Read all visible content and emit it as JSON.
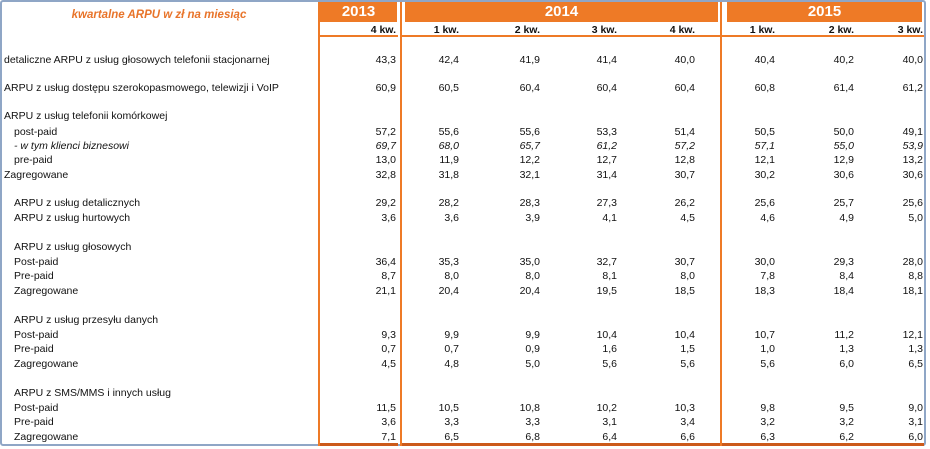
{
  "header": {
    "title": "kwartalne ARPU w zł na miesiąc",
    "years": [
      "2013",
      "2014",
      "2015"
    ],
    "quarters": [
      "4 kw.",
      "1 kw.",
      "2 kw.",
      "3 kw.",
      "4 kw.",
      "1 kw.",
      "2 kw.",
      "3 kw."
    ]
  },
  "rows": [
    {
      "label": "detaliczne ARPU z usług głosowych telefonii stacjonarnej",
      "indent": 0,
      "italic": false,
      "values": [
        "43,3",
        "42,4",
        "41,9",
        "41,4",
        "40,0",
        "40,4",
        "40,2",
        "40,0"
      ]
    },
    {
      "label": "ARPU z usług dostępu szerokopasmowego, telewizji i VoIP",
      "indent": 0,
      "italic": false,
      "values": [
        "60,9",
        "60,5",
        "60,4",
        "60,4",
        "60,4",
        "60,8",
        "61,4",
        "61,2"
      ]
    },
    {
      "label": "ARPU z usług telefonii komórkowej",
      "indent": 0,
      "italic": false,
      "values": []
    },
    {
      "label": "post-paid",
      "indent": 1,
      "italic": false,
      "values": [
        "57,2",
        "55,6",
        "55,6",
        "53,3",
        "51,4",
        "50,5",
        "50,0",
        "49,1"
      ]
    },
    {
      "label": "- w tym klienci biznesowi",
      "indent": 1,
      "italic": true,
      "values": [
        "69,7",
        "68,0",
        "65,7",
        "61,2",
        "57,2",
        "57,1",
        "55,0",
        "53,9"
      ]
    },
    {
      "label": "pre-paid",
      "indent": 1,
      "italic": false,
      "values": [
        "13,0",
        "11,9",
        "12,2",
        "12,7",
        "12,8",
        "12,1",
        "12,9",
        "13,2"
      ]
    },
    {
      "label": "Zagregowane",
      "indent": 0,
      "italic": false,
      "values": [
        "32,8",
        "31,8",
        "32,1",
        "31,4",
        "30,7",
        "30,2",
        "30,6",
        "30,6"
      ]
    },
    {
      "label": "ARPU z usług detalicznych",
      "indent": 1,
      "italic": false,
      "values": [
        "29,2",
        "28,2",
        "28,3",
        "27,3",
        "26,2",
        "25,6",
        "25,7",
        "25,6"
      ]
    },
    {
      "label": "ARPU z usług hurtowych",
      "indent": 1,
      "italic": false,
      "values": [
        "3,6",
        "3,6",
        "3,9",
        "4,1",
        "4,5",
        "4,6",
        "4,9",
        "5,0"
      ]
    },
    {
      "label": "ARPU z usług głosowych",
      "indent": 1,
      "italic": false,
      "values": []
    },
    {
      "label": "Post-paid",
      "indent": 1,
      "italic": false,
      "values": [
        "36,4",
        "35,3",
        "35,0",
        "32,7",
        "30,7",
        "30,0",
        "29,3",
        "28,0"
      ]
    },
    {
      "label": "Pre-paid",
      "indent": 1,
      "italic": false,
      "values": [
        "8,7",
        "8,0",
        "8,0",
        "8,1",
        "8,0",
        "7,8",
        "8,4",
        "8,8"
      ]
    },
    {
      "label": "Zagregowane",
      "indent": 1,
      "italic": false,
      "values": [
        "21,1",
        "20,4",
        "20,4",
        "19,5",
        "18,5",
        "18,3",
        "18,4",
        "18,1"
      ]
    },
    {
      "label": "ARPU z usług przesyłu danych",
      "indent": 1,
      "italic": false,
      "values": []
    },
    {
      "label": "Post-paid",
      "indent": 1,
      "italic": false,
      "values": [
        "9,3",
        "9,9",
        "9,9",
        "10,4",
        "10,4",
        "10,7",
        "11,2",
        "12,1"
      ]
    },
    {
      "label": "Pre-paid",
      "indent": 1,
      "italic": false,
      "values": [
        "0,7",
        "0,7",
        "0,9",
        "1,6",
        "1,5",
        "1,0",
        "1,3",
        "1,3"
      ]
    },
    {
      "label": "Zagregowane",
      "indent": 1,
      "italic": false,
      "values": [
        "4,5",
        "4,8",
        "5,0",
        "5,6",
        "5,6",
        "5,6",
        "6,0",
        "6,5"
      ]
    },
    {
      "label": "ARPU z SMS/MMS i innych usług",
      "indent": 1,
      "italic": false,
      "values": []
    },
    {
      "label": "Post-paid",
      "indent": 1,
      "italic": false,
      "values": [
        "11,5",
        "10,5",
        "10,8",
        "10,2",
        "10,3",
        "9,8",
        "9,5",
        "9,0"
      ]
    },
    {
      "label": "Pre-paid",
      "indent": 1,
      "italic": false,
      "values": [
        "3,6",
        "3,3",
        "3,3",
        "3,1",
        "3,4",
        "3,2",
        "3,2",
        "3,1"
      ]
    },
    {
      "label": "Zagregowane",
      "indent": 1,
      "italic": false,
      "values": [
        "7,1",
        "6,5",
        "6,8",
        "6,4",
        "6,6",
        "6,3",
        "6,2",
        "6,0"
      ]
    }
  ],
  "colors": {
    "accent": "#ee7a26",
    "title": "#e8742a",
    "frame": "#8fa6c6"
  }
}
